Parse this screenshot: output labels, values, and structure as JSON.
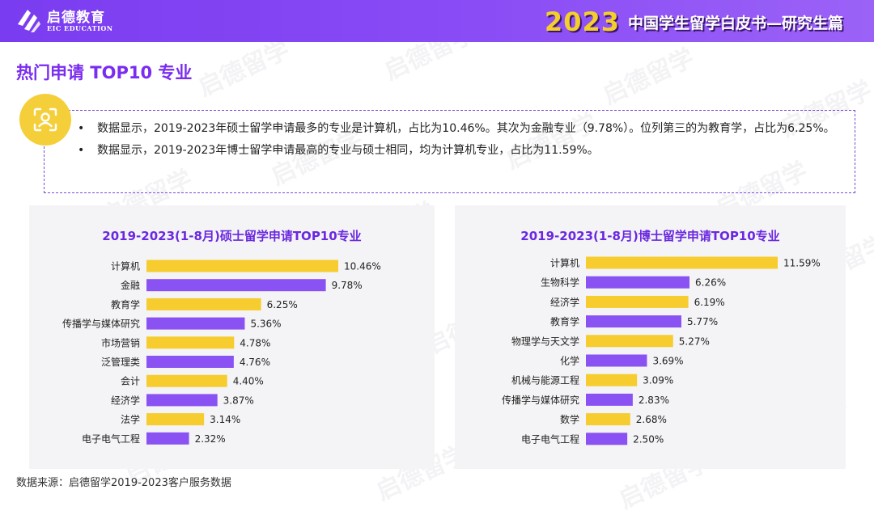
{
  "header": {
    "logo_cn": "启德教育",
    "logo_en": "EIC EDUCATION",
    "year": "2023",
    "title": "中国学生留学白皮书—研究生篇"
  },
  "section_title": "热门申请 TOP10 专业",
  "bullets": [
    "数据显示，2019-2023年硕士留学申请最多的专业是计算机，占比为10.46%。其次为金融专业（9.78%）。位列第三的为教育学，占比为6.25%。",
    "数据显示，2019-2023年博士留学申请最高的专业与硕士相同，均为计算机专业，占比为11.59%。"
  ],
  "watermark_text": "启德留学",
  "footnote": "数据来源：启德留学2019-2023客户服务数据",
  "colors": {
    "yellow": "#f6cc2e",
    "purple": "#8a52f2",
    "accent": "#7a2cf0"
  },
  "chart_data": [
    {
      "type": "bar",
      "orientation": "horizontal",
      "title": "2019-2023(1-8月)硕士留学申请TOP10专业",
      "categories": [
        "计算机",
        "金融",
        "教育学",
        "传播学与媒体研究",
        "市场营销",
        "泛管理类",
        "会计",
        "经济学",
        "法学",
        "电子电气工程"
      ],
      "values": [
        10.46,
        9.78,
        6.25,
        5.36,
        4.78,
        4.76,
        4.4,
        3.87,
        3.14,
        2.32
      ],
      "labels": [
        "10.46%",
        "9.78%",
        "6.25%",
        "5.36%",
        "4.78%",
        "4.76%",
        "4.40%",
        "3.87%",
        "3.14%",
        "2.32%"
      ],
      "bar_colors": [
        "#f6cc2e",
        "#8a52f2",
        "#f6cc2e",
        "#8a52f2",
        "#f6cc2e",
        "#8a52f2",
        "#f6cc2e",
        "#8a52f2",
        "#f6cc2e",
        "#8a52f2"
      ],
      "xlim": [
        0,
        10.46
      ],
      "grid": false
    },
    {
      "type": "bar",
      "orientation": "horizontal",
      "title": "2019-2023(1-8月)博士留学申请TOP10专业",
      "categories": [
        "计算机",
        "生物科学",
        "经济学",
        "教育学",
        "物理学与天文学",
        "化学",
        "机械与能源工程",
        "传播学与媒体研究",
        "数学",
        "电子电气工程"
      ],
      "values": [
        11.59,
        6.26,
        6.19,
        5.77,
        5.27,
        3.69,
        3.09,
        2.83,
        2.68,
        2.5
      ],
      "labels": [
        "11.59%",
        "6.26%",
        "6.19%",
        "5.77%",
        "5.27%",
        "3.69%",
        "3.09%",
        "2.83%",
        "2.68%",
        "2.50%"
      ],
      "bar_colors": [
        "#f6cc2e",
        "#8a52f2",
        "#f6cc2e",
        "#8a52f2",
        "#f6cc2e",
        "#8a52f2",
        "#f6cc2e",
        "#8a52f2",
        "#f6cc2e",
        "#8a52f2"
      ],
      "xlim": [
        0,
        11.59
      ],
      "grid": false
    }
  ]
}
